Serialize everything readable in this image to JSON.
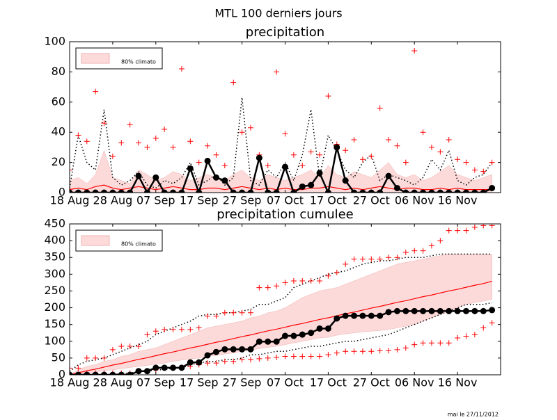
{
  "title": "MTL 100 derniers jours",
  "footer": "mai le 27/11/2012",
  "chart_data": [
    {
      "type": "line",
      "title": "precipitation",
      "x": [
        0,
        2,
        4,
        6,
        8,
        10,
        12,
        14,
        16,
        18,
        20,
        22,
        24,
        26,
        28,
        30,
        32,
        34,
        36,
        38,
        40,
        42,
        44,
        46,
        48,
        50,
        52,
        54,
        56,
        58,
        60,
        62,
        64,
        66,
        68,
        70,
        72,
        74,
        76,
        78,
        80,
        82,
        84,
        86,
        88,
        90,
        92,
        94,
        96,
        98
      ],
      "xlim": [
        0,
        100
      ],
      "xticks": [
        {
          "value": 0,
          "label": "18 Aug"
        },
        {
          "value": 10,
          "label": "28 Aug"
        },
        {
          "value": 20,
          "label": "07 Sep"
        },
        {
          "value": 30,
          "label": "17 Sep"
        },
        {
          "value": 40,
          "label": "27 Sep"
        },
        {
          "value": 50,
          "label": "07 Oct"
        },
        {
          "value": 60,
          "label": "17 Oct"
        },
        {
          "value": 70,
          "label": "27 Oct"
        },
        {
          "value": 80,
          "label": "06 Nov"
        },
        {
          "value": 90,
          "label": "16 Nov"
        }
      ],
      "ylim": [
        0,
        100
      ],
      "yticks": [
        0,
        20,
        40,
        60,
        80,
        100
      ],
      "legend": "upper left",
      "series": [
        {
          "name": "80% climato",
          "style": "band",
          "color": "#fcdada",
          "lower": [
            0,
            0,
            0,
            0,
            0,
            0,
            0,
            0,
            0,
            0,
            0,
            0,
            0,
            0,
            0,
            0,
            0,
            0,
            0,
            0,
            0,
            0,
            0,
            0,
            0,
            0,
            0,
            0,
            0,
            0,
            0,
            0,
            0,
            0,
            0,
            0,
            0,
            0,
            0,
            0,
            0,
            0,
            0,
            0,
            0,
            0,
            0,
            0,
            0,
            0
          ],
          "upper": [
            8,
            10,
            6,
            12,
            28,
            10,
            8,
            6,
            15,
            12,
            8,
            10,
            14,
            12,
            8,
            10,
            12,
            10,
            8,
            12,
            15,
            10,
            8,
            12,
            10,
            8,
            10,
            12,
            15,
            10,
            18,
            12,
            10,
            14,
            12,
            10,
            15,
            20,
            12,
            10,
            12,
            8,
            10,
            14,
            18,
            12,
            10,
            8,
            10,
            12
          ]
        },
        {
          "style": "dotted",
          "color": "#000000",
          "values": [
            3,
            38,
            20,
            15,
            55,
            10,
            5,
            8,
            14,
            5,
            3,
            8,
            6,
            10,
            20,
            5,
            8,
            12,
            5,
            10,
            63,
            8,
            5,
            15,
            10,
            20,
            8,
            25,
            55,
            10,
            38,
            28,
            15,
            10,
            20,
            25,
            8,
            12,
            10,
            8,
            5,
            10,
            22,
            15,
            28,
            8,
            5,
            10,
            12,
            20
          ]
        },
        {
          "style": "line",
          "color": "#ff0000",
          "values": [
            2,
            3,
            2,
            4,
            5,
            3,
            2,
            3,
            4,
            3,
            2,
            3,
            4,
            3,
            2,
            2,
            3,
            3,
            2,
            3,
            4,
            3,
            2,
            3,
            2,
            3,
            2,
            2,
            3,
            3,
            4,
            3,
            2,
            3,
            2,
            3,
            4,
            3,
            2,
            3,
            3,
            2,
            2,
            3,
            2,
            3,
            2,
            2,
            2,
            2
          ]
        },
        {
          "style": "plus",
          "color": "#ff0000",
          "values": [
            15,
            38,
            34,
            67,
            46,
            24,
            33,
            45,
            33,
            30,
            36,
            42,
            30,
            82,
            34,
            20,
            31,
            25,
            18,
            73,
            40,
            43,
            25,
            18,
            80,
            39,
            25,
            18,
            27,
            25,
            64,
            32,
            28,
            35,
            22,
            24,
            56,
            35,
            31,
            20,
            94,
            40,
            30,
            27,
            35,
            22,
            20,
            15,
            14,
            20
          ]
        },
        {
          "style": "line-dot",
          "color": "#000000",
          "values": [
            0,
            0,
            0,
            0,
            0,
            0,
            0,
            0,
            11,
            0,
            10,
            0,
            0,
            0,
            16,
            0,
            21,
            10,
            8,
            0,
            0,
            0,
            23,
            0,
            0,
            17,
            0,
            4,
            5,
            13,
            0,
            30,
            8,
            0,
            0,
            0,
            0,
            11,
            3,
            0,
            0,
            0,
            0,
            0,
            0,
            0,
            0,
            0,
            0,
            3
          ]
        }
      ]
    },
    {
      "type": "line",
      "title": "precipitation cumulee",
      "x": [
        0,
        2,
        4,
        6,
        8,
        10,
        12,
        14,
        16,
        18,
        20,
        22,
        24,
        26,
        28,
        30,
        32,
        34,
        36,
        38,
        40,
        42,
        44,
        46,
        48,
        50,
        52,
        54,
        56,
        58,
        60,
        62,
        64,
        66,
        68,
        70,
        72,
        74,
        76,
        78,
        80,
        82,
        84,
        86,
        88,
        90,
        92,
        94,
        96,
        98
      ],
      "xlim": [
        0,
        100
      ],
      "xticks": [
        {
          "value": 0,
          "label": "18 Aug"
        },
        {
          "value": 10,
          "label": "28 Aug"
        },
        {
          "value": 20,
          "label": "07 Sep"
        },
        {
          "value": 30,
          "label": "17 Sep"
        },
        {
          "value": 40,
          "label": "27 Sep"
        },
        {
          "value": 50,
          "label": "07 Oct"
        },
        {
          "value": 60,
          "label": "17 Oct"
        },
        {
          "value": 70,
          "label": "27 Oct"
        },
        {
          "value": 80,
          "label": "06 Nov"
        },
        {
          "value": 90,
          "label": "16 Nov"
        }
      ],
      "ylim": [
        0,
        450
      ],
      "yticks": [
        0,
        50,
        100,
        150,
        200,
        250,
        300,
        350,
        400,
        450
      ],
      "legend": "upper left",
      "series": [
        {
          "name": "80% climato",
          "style": "band",
          "color": "#fcdada",
          "lower": [
            0,
            2,
            5,
            8,
            12,
            15,
            18,
            22,
            25,
            28,
            32,
            35,
            40,
            44,
            47,
            50,
            55,
            58,
            62,
            65,
            70,
            74,
            78,
            82,
            85,
            90,
            95,
            100,
            105,
            110,
            112,
            118,
            122,
            125,
            128,
            130,
            132,
            135,
            140,
            145,
            150,
            160,
            170,
            180,
            190,
            200,
            210,
            215,
            220,
            225
          ],
          "upper": [
            0,
            15,
            25,
            30,
            40,
            45,
            55,
            60,
            70,
            75,
            80,
            90,
            100,
            110,
            120,
            130,
            140,
            145,
            150,
            155,
            160,
            170,
            175,
            185,
            190,
            200,
            215,
            230,
            240,
            250,
            255,
            260,
            270,
            280,
            290,
            300,
            310,
            320,
            330,
            335,
            340,
            345,
            350,
            355,
            360,
            360,
            360,
            360,
            360,
            360
          ]
        },
        {
          "style": "dotted",
          "color": "#000000",
          "values": [
            10,
            30,
            40,
            45,
            50,
            60,
            70,
            80,
            90,
            100,
            120,
            130,
            140,
            150,
            160,
            175,
            180,
            180,
            185,
            185,
            190,
            195,
            210,
            210,
            220,
            230,
            260,
            270,
            280,
            290,
            300,
            305,
            310,
            320,
            330,
            335,
            340,
            340,
            345,
            350,
            350,
            350,
            355,
            360,
            360,
            360,
            360,
            360,
            360,
            360
          ]
        },
        {
          "style": "dotted",
          "color": "#000000",
          "values": [
            0,
            0,
            0,
            0,
            0,
            0,
            5,
            5,
            10,
            10,
            15,
            15,
            20,
            20,
            30,
            35,
            40,
            40,
            45,
            45,
            50,
            60,
            60,
            65,
            70,
            70,
            75,
            80,
            85,
            85,
            90,
            95,
            100,
            100,
            105,
            110,
            115,
            120,
            130,
            140,
            150,
            160,
            170,
            180,
            190,
            200,
            210,
            210,
            210,
            215
          ]
        },
        {
          "style": "line",
          "color": "#ff0000",
          "values": [
            0,
            6,
            12,
            17,
            23,
            29,
            34,
            40,
            46,
            51,
            57,
            63,
            68,
            74,
            80,
            85,
            91,
            97,
            102,
            108,
            114,
            119,
            125,
            131,
            136,
            142,
            148,
            153,
            159,
            165,
            170,
            176,
            182,
            187,
            193,
            199,
            204,
            210,
            216,
            221,
            227,
            233,
            238,
            244,
            250,
            255,
            261,
            267,
            272,
            279
          ]
        },
        {
          "style": "plus",
          "color": "#ff0000",
          "values": [
            20,
            20,
            50,
            50,
            50,
            75,
            85,
            85,
            85,
            120,
            130,
            135,
            135,
            135,
            135,
            140,
            175,
            175,
            185,
            185,
            185,
            185,
            260,
            260,
            265,
            275,
            280,
            280,
            280,
            280,
            295,
            305,
            330,
            345,
            345,
            345,
            345,
            350,
            350,
            365,
            370,
            370,
            385,
            400,
            430,
            430,
            430,
            440,
            445,
            445
          ]
        },
        {
          "style": "plus",
          "color": "#ff0000",
          "values": [
            0,
            0,
            5,
            5,
            5,
            5,
            5,
            5,
            10,
            10,
            15,
            20,
            20,
            20,
            25,
            30,
            35,
            35,
            40,
            40,
            45,
            45,
            48,
            50,
            52,
            55,
            55,
            55,
            55,
            55,
            60,
            65,
            70,
            70,
            70,
            70,
            72,
            72,
            75,
            80,
            90,
            95,
            95,
            95,
            95,
            110,
            115,
            120,
            140,
            155
          ]
        },
        {
          "style": "line-dot",
          "color": "#000000",
          "values": [
            0,
            0,
            0,
            0,
            0,
            0,
            0,
            0,
            11,
            11,
            21,
            21,
            21,
            21,
            37,
            37,
            58,
            68,
            76,
            76,
            76,
            76,
            99,
            99,
            99,
            116,
            116,
            120,
            125,
            138,
            138,
            168,
            176,
            176,
            176,
            176,
            176,
            187,
            190,
            190,
            190,
            190,
            190,
            190,
            190,
            190,
            190,
            190,
            190,
            193
          ]
        }
      ]
    }
  ]
}
